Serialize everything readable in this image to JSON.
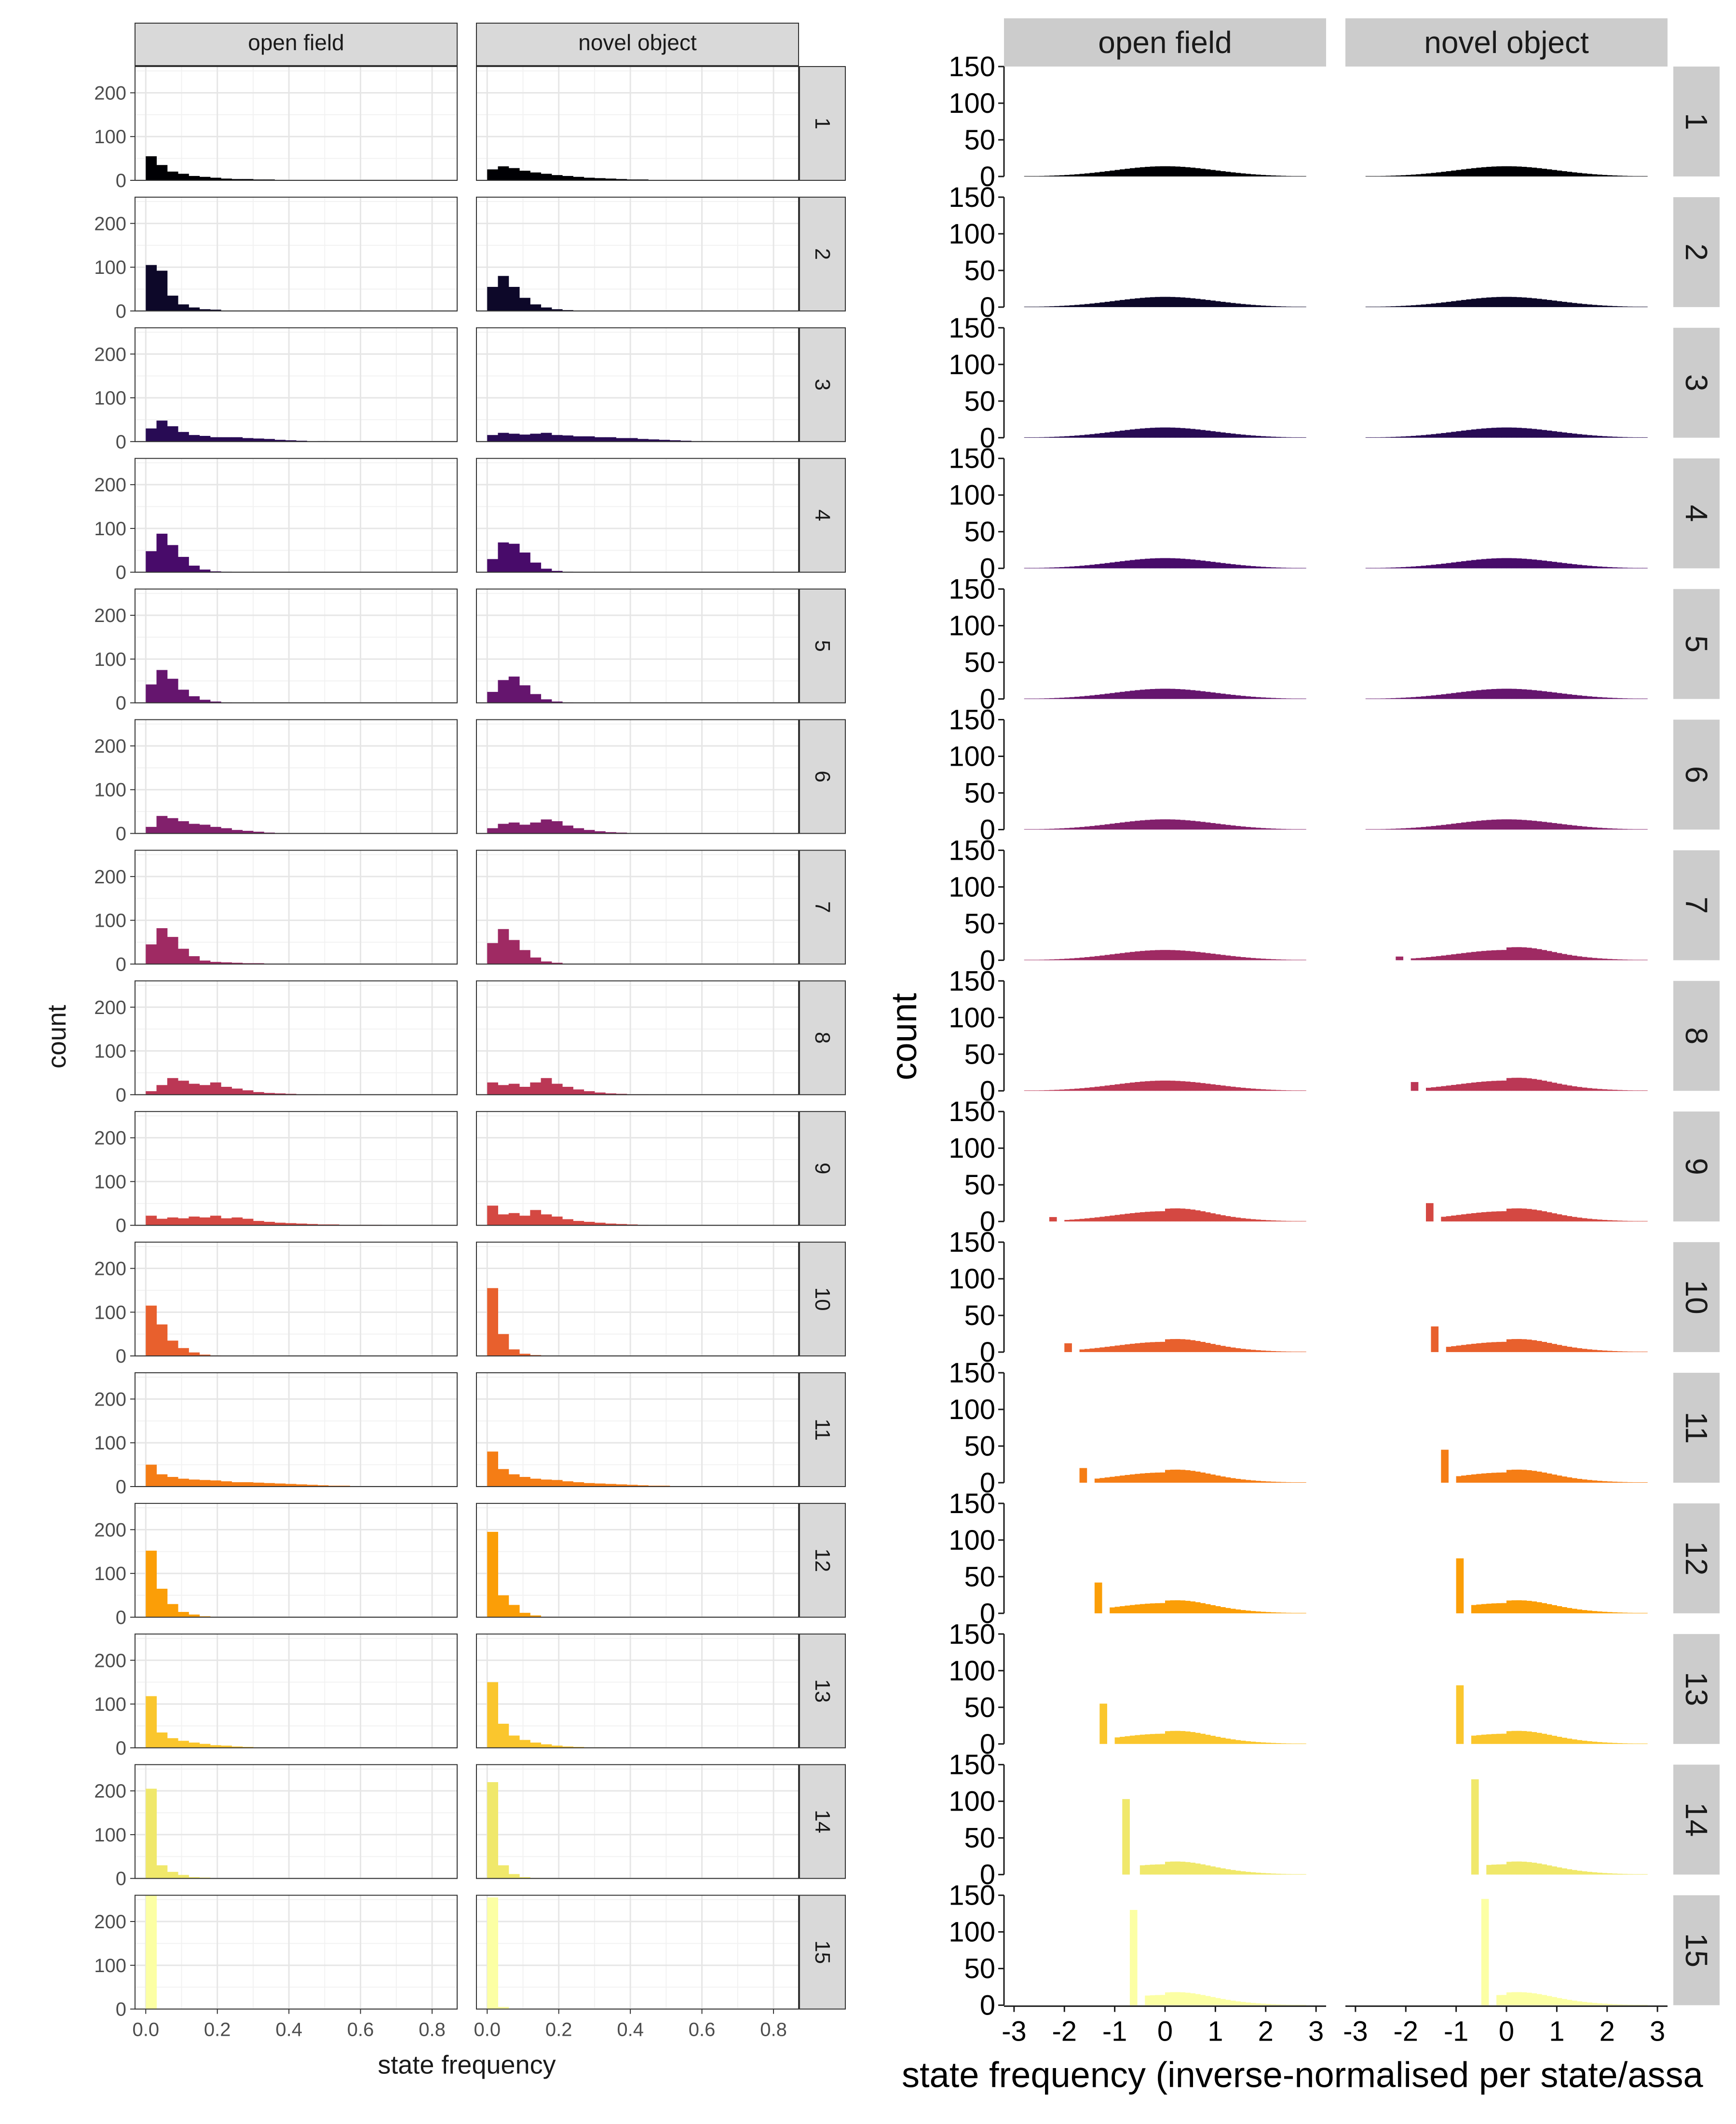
{
  "figure": {
    "strip_columns": [
      "open field",
      "novel object"
    ],
    "state_labels": [
      "1",
      "2",
      "3",
      "4",
      "5",
      "6",
      "7",
      "8",
      "9",
      "10",
      "11",
      "12",
      "13",
      "14",
      "15"
    ],
    "state_colors": [
      "#000004",
      "#0d0829",
      "#280b54",
      "#480b6a",
      "#65156e",
      "#82206c",
      "#9f2a63",
      "#bb3755",
      "#d44842",
      "#e8602d",
      "#f57d15",
      "#fb9e07",
      "#fac62d",
      "#f0e86b",
      "#fcffa4"
    ]
  },
  "chart_data": [
    {
      "type": "bar",
      "title": "",
      "xlabel": "state frequency",
      "ylabel": "count",
      "grid": true,
      "facet_columns": [
        "open field",
        "novel object"
      ],
      "facet_rows": [
        "1",
        "2",
        "3",
        "4",
        "5",
        "6",
        "7",
        "8",
        "9",
        "10",
        "11",
        "12",
        "13",
        "14",
        "15"
      ],
      "xlim": [
        -0.03,
        0.87
      ],
      "ylim": [
        0,
        260
      ],
      "xticks": [
        "0.0",
        "0.2",
        "0.4",
        "0.6",
        "0.8"
      ],
      "yticks": [
        "0",
        "100",
        "200"
      ],
      "bin_width": 0.03,
      "bin_start": 0.0,
      "panels": {
        "open field": [
          [
            55,
            35,
            20,
            15,
            10,
            8,
            6,
            4,
            3,
            3,
            2,
            2,
            0,
            1,
            1,
            0,
            1,
            0,
            0,
            0,
            0,
            1,
            0,
            0,
            0,
            0,
            0,
            0
          ],
          [
            105,
            92,
            35,
            15,
            8,
            4,
            3,
            1,
            1,
            1,
            0,
            0,
            0,
            0,
            0,
            0,
            0,
            0,
            0,
            0,
            0,
            0,
            0,
            0,
            0,
            0,
            0,
            0
          ],
          [
            30,
            48,
            35,
            22,
            15,
            13,
            10,
            10,
            10,
            8,
            7,
            6,
            4,
            3,
            2,
            0,
            1,
            0,
            0,
            0,
            0,
            0,
            0,
            0,
            0,
            0,
            0,
            0
          ],
          [
            48,
            88,
            62,
            35,
            15,
            6,
            2,
            1,
            0,
            0,
            0,
            0,
            0,
            0,
            0,
            0,
            0,
            0,
            0,
            0,
            0,
            0,
            0,
            0,
            0,
            0,
            0,
            0
          ],
          [
            42,
            75,
            55,
            30,
            15,
            7,
            3,
            1,
            0,
            0,
            0,
            0,
            0,
            0,
            0,
            0,
            0,
            0,
            0,
            0,
            0,
            0,
            0,
            0,
            0,
            0,
            0,
            0
          ],
          [
            15,
            40,
            35,
            28,
            22,
            20,
            15,
            12,
            8,
            6,
            4,
            2,
            1,
            1,
            0,
            1,
            0,
            0,
            0,
            0,
            0,
            0,
            0,
            0,
            0,
            0,
            0,
            0
          ],
          [
            45,
            82,
            62,
            35,
            18,
            8,
            5,
            4,
            3,
            2,
            2,
            1,
            1,
            0,
            0,
            0,
            0,
            0,
            0,
            0,
            0,
            0,
            0,
            0,
            0,
            0,
            0,
            0
          ],
          [
            8,
            22,
            38,
            32,
            25,
            22,
            28,
            18,
            14,
            10,
            6,
            4,
            3,
            2,
            1,
            1,
            0,
            0,
            0,
            0,
            0,
            0,
            0,
            0,
            0,
            0,
            0,
            0
          ],
          [
            22,
            15,
            18,
            16,
            20,
            18,
            22,
            16,
            18,
            15,
            10,
            8,
            6,
            5,
            4,
            3,
            2,
            2,
            1,
            1,
            1,
            1,
            0,
            0,
            0,
            0,
            0,
            0
          ],
          [
            115,
            72,
            35,
            18,
            8,
            3,
            1,
            0,
            0,
            0,
            0,
            0,
            0,
            0,
            0,
            0,
            0,
            0,
            0,
            0,
            0,
            0,
            0,
            0,
            0,
            0,
            0,
            0
          ],
          [
            50,
            28,
            22,
            18,
            16,
            15,
            14,
            12,
            10,
            10,
            9,
            8,
            7,
            6,
            5,
            4,
            3,
            2,
            2,
            1,
            1,
            1,
            0,
            0,
            0,
            0,
            0,
            0
          ],
          [
            152,
            65,
            30,
            12,
            6,
            2,
            1,
            0,
            0,
            0,
            0,
            0,
            0,
            0,
            0,
            0,
            0,
            0,
            0,
            0,
            0,
            0,
            0,
            0,
            0,
            0,
            0,
            0
          ],
          [
            118,
            35,
            22,
            16,
            12,
            9,
            6,
            5,
            3,
            2,
            1,
            1,
            0,
            0,
            0,
            0,
            0,
            0,
            0,
            0,
            0,
            0,
            0,
            0,
            0,
            0,
            0,
            0
          ],
          [
            205,
            30,
            15,
            8,
            3,
            2,
            0,
            0,
            0,
            0,
            0,
            0,
            0,
            0,
            0,
            0,
            0,
            0,
            0,
            0,
            0,
            0,
            0,
            0,
            0,
            0,
            0,
            0
          ],
          [
            260,
            0,
            0,
            0,
            0,
            0,
            0,
            0,
            0,
            0,
            0,
            0,
            0,
            0,
            0,
            0,
            0,
            0,
            0,
            0,
            0,
            0,
            0,
            0,
            0,
            0,
            0,
            0
          ]
        ],
        "novel object": [
          [
            25,
            32,
            28,
            22,
            18,
            15,
            12,
            10,
            8,
            6,
            5,
            4,
            3,
            2,
            2,
            1,
            1,
            1,
            1,
            0,
            0,
            0,
            0,
            0,
            0,
            0,
            0,
            0
          ],
          [
            55,
            80,
            55,
            30,
            15,
            8,
            4,
            2,
            1,
            0,
            0,
            0,
            0,
            0,
            0,
            0,
            0,
            0,
            0,
            0,
            0,
            0,
            0,
            0,
            0,
            0,
            0,
            0
          ],
          [
            15,
            20,
            18,
            16,
            18,
            20,
            15,
            14,
            12,
            12,
            10,
            10,
            8,
            8,
            6,
            5,
            4,
            3,
            2,
            1,
            1,
            0,
            0,
            0,
            0,
            0,
            0,
            0
          ],
          [
            30,
            68,
            65,
            45,
            22,
            8,
            3,
            1,
            0,
            0,
            0,
            0,
            0,
            0,
            0,
            0,
            0,
            0,
            0,
            0,
            0,
            0,
            0,
            0,
            0,
            0,
            0,
            0
          ],
          [
            25,
            52,
            60,
            40,
            20,
            8,
            3,
            1,
            0,
            0,
            0,
            0,
            0,
            0,
            0,
            0,
            0,
            0,
            0,
            0,
            0,
            0,
            0,
            0,
            0,
            0,
            0,
            0
          ],
          [
            12,
            22,
            25,
            20,
            25,
            32,
            28,
            18,
            12,
            8,
            5,
            3,
            2,
            1,
            0,
            0,
            0,
            0,
            0,
            0,
            0,
            0,
            0,
            0,
            0,
            0,
            0,
            0
          ],
          [
            48,
            80,
            55,
            32,
            15,
            6,
            3,
            1,
            0,
            0,
            0,
            0,
            0,
            0,
            0,
            0,
            0,
            0,
            0,
            0,
            0,
            0,
            0,
            0,
            0,
            0,
            0,
            0
          ],
          [
            28,
            22,
            25,
            18,
            28,
            38,
            25,
            18,
            12,
            8,
            5,
            3,
            2,
            1,
            1,
            0,
            0,
            0,
            0,
            0,
            0,
            0,
            0,
            0,
            0,
            0,
            0,
            0
          ],
          [
            45,
            25,
            28,
            22,
            35,
            25,
            20,
            14,
            10,
            8,
            6,
            4,
            3,
            2,
            1,
            0,
            0,
            0,
            0,
            0,
            0,
            0,
            0,
            0,
            0,
            0,
            0,
            0
          ],
          [
            155,
            50,
            15,
            5,
            2,
            0,
            0,
            0,
            0,
            0,
            0,
            0,
            0,
            0,
            0,
            0,
            0,
            0,
            0,
            0,
            0,
            0,
            0,
            0,
            0,
            0,
            0,
            0
          ],
          [
            80,
            40,
            28,
            22,
            18,
            16,
            15,
            12,
            10,
            8,
            7,
            6,
            5,
            4,
            3,
            2,
            2,
            1,
            1,
            0,
            0,
            0,
            0,
            0,
            0,
            0,
            0,
            0
          ],
          [
            195,
            50,
            28,
            10,
            4,
            1,
            0,
            0,
            0,
            0,
            0,
            0,
            0,
            0,
            0,
            0,
            0,
            0,
            0,
            0,
            0,
            0,
            0,
            0,
            0,
            0,
            0,
            0
          ],
          [
            150,
            55,
            28,
            18,
            12,
            8,
            5,
            3,
            2,
            1,
            1,
            0,
            0,
            0,
            0,
            0,
            0,
            0,
            0,
            0,
            0,
            0,
            0,
            0,
            0,
            0,
            0,
            0
          ],
          [
            220,
            30,
            10,
            3,
            1,
            0,
            0,
            0,
            0,
            0,
            0,
            0,
            0,
            0,
            0,
            0,
            0,
            0,
            0,
            0,
            0,
            0,
            0,
            0,
            0,
            0,
            0,
            0
          ],
          [
            255,
            5,
            0,
            0,
            0,
            0,
            0,
            0,
            0,
            0,
            0,
            0,
            0,
            0,
            0,
            0,
            0,
            0,
            0,
            0,
            0,
            0,
            0,
            0,
            0,
            0,
            0,
            0
          ]
        ]
      }
    },
    {
      "type": "bar",
      "title": "",
      "xlabel": "state frequency (inverse-normalised per state/assa",
      "ylabel": "count",
      "grid": false,
      "facet_columns": [
        "open field",
        "novel object"
      ],
      "facet_rows": [
        "1",
        "2",
        "3",
        "4",
        "5",
        "6",
        "7",
        "8",
        "9",
        "10",
        "11",
        "12",
        "13",
        "14",
        "15"
      ],
      "xlim": [
        -3.2,
        3.2
      ],
      "ylim": [
        0,
        150
      ],
      "xticks": [
        "-3",
        "-2",
        "-1",
        "0",
        "1",
        "2",
        "3"
      ],
      "yticks": [
        "0",
        "50",
        "100",
        "150"
      ],
      "bin_width": 0.1,
      "normal_peak": 14,
      "normal_range": [
        -2.8,
        2.8
      ],
      "spikes": {
        "open field": [
          null,
          null,
          null,
          null,
          null,
          null,
          null,
          null,
          {
            "x": -2.3,
            "count": 6
          },
          {
            "x": -2.0,
            "count": 12
          },
          {
            "x": -1.7,
            "count": 20
          },
          {
            "x": -1.4,
            "count": 42
          },
          {
            "x": -1.3,
            "count": 55
          },
          {
            "x": -0.85,
            "count": 103
          },
          {
            "x": -0.7,
            "count": 130
          }
        ],
        "novel object": [
          null,
          null,
          null,
          null,
          null,
          null,
          {
            "x": -2.2,
            "count": 5
          },
          {
            "x": -1.9,
            "count": 12
          },
          {
            "x": -1.6,
            "count": 25
          },
          {
            "x": -1.5,
            "count": 35
          },
          {
            "x": -1.3,
            "count": 45
          },
          {
            "x": -1.0,
            "count": 75
          },
          {
            "x": -1.0,
            "count": 80
          },
          {
            "x": -0.7,
            "count": 130
          },
          {
            "x": -0.5,
            "count": 145
          }
        ]
      }
    }
  ]
}
